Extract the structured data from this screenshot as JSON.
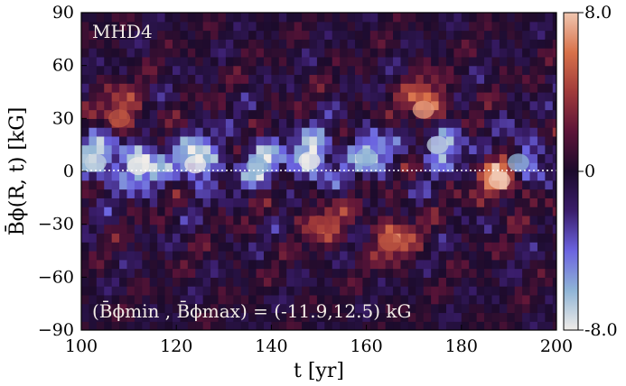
{
  "chart_data": {
    "type": "heatmap",
    "title": "",
    "panel_label": "MHD4",
    "annotation": "(B̄ϕmin , B̄ϕmax) =  (-11.9,12.5) kG",
    "xlabel": "t [yr]",
    "ylabel": "B̄ϕ(R, t) [kG]",
    "xlim": [
      100,
      200
    ],
    "ylim": [
      -90,
      90
    ],
    "xticks": [
      "100",
      "120",
      "140",
      "160",
      "180",
      "200"
    ],
    "yticks": [
      "90",
      "60",
      "30",
      "0",
      "−30",
      "−60",
      "−90"
    ],
    "colorbar": {
      "vmin": -8.0,
      "vmax": 8.0,
      "tick_labels": [
        "8.0",
        "0",
        "-8.0"
      ],
      "colormap": [
        "#f0ece8",
        "#8fb4d6",
        "#6b63e0",
        "#3a1d6b",
        "#1c0b2c",
        "#5c1438",
        "#a03a3a",
        "#d8714a",
        "#f0c6b0"
      ]
    },
    "zero_line": {
      "y": 0,
      "style": "dotted",
      "color": "#ffffff"
    },
    "features": [
      {
        "t": 103,
        "lat": 5,
        "value": -7
      },
      {
        "t": 112,
        "lat": 3,
        "value": -8
      },
      {
        "t": 124,
        "lat": 4,
        "value": -8
      },
      {
        "t": 137,
        "lat": 3,
        "value": -6
      },
      {
        "t": 148,
        "lat": 6,
        "value": -8
      },
      {
        "t": 160,
        "lat": 8,
        "value": -6
      },
      {
        "t": 175,
        "lat": 15,
        "value": -7
      },
      {
        "t": 192,
        "lat": 5,
        "value": -6
      },
      {
        "t": 172,
        "lat": 35,
        "value": 7
      },
      {
        "t": 188,
        "lat": -5,
        "value": 8
      },
      {
        "t": 108,
        "lat": 30,
        "value": 5
      },
      {
        "t": 150,
        "lat": -30,
        "value": 4
      },
      {
        "t": 165,
        "lat": -40,
        "value": 5
      }
    ]
  }
}
